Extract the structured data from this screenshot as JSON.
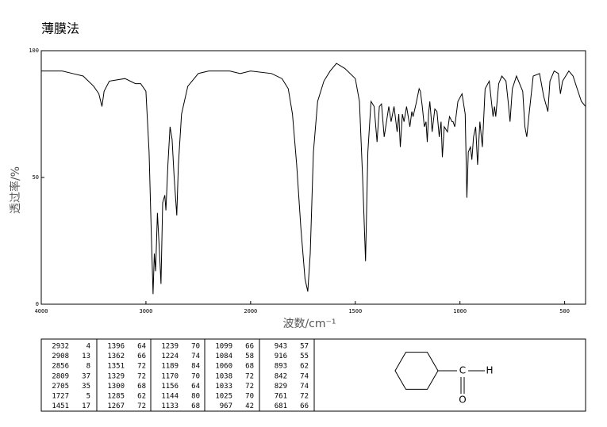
{
  "chart_data": {
    "type": "line",
    "title": "薄膜法",
    "x_label": "波数/cm⁻¹",
    "y_label": "透过率/%",
    "xlim": [
      4000,
      400
    ],
    "ylim": [
      0,
      100
    ],
    "x_scale_break": {
      "at": 2000,
      "factor_below": 2
    },
    "xticks": [
      4000,
      3000,
      2000,
      1500,
      1000,
      500
    ],
    "yticks": [
      0,
      50,
      100
    ],
    "series": [
      {
        "color": "#000000",
        "x": [
          4000,
          3900,
          3800,
          3700,
          3600,
          3500,
          3450,
          3420,
          3400,
          3350,
          3200,
          3100,
          3050,
          3000,
          2970,
          2950,
          2932,
          2920,
          2908,
          2890,
          2870,
          2856,
          2840,
          2820,
          2809,
          2790,
          2770,
          2750,
          2730,
          2705,
          2690,
          2660,
          2600,
          2500,
          2400,
          2300,
          2200,
          2100,
          2000,
          1900,
          1850,
          1820,
          1800,
          1780,
          1760,
          1740,
          1727,
          1715,
          1700,
          1680,
          1650,
          1620,
          1590,
          1550,
          1500,
          1480,
          1465,
          1451,
          1440,
          1425,
          1410,
          1396,
          1385,
          1375,
          1362,
          1351,
          1340,
          1329,
          1315,
          1300,
          1292,
          1285,
          1275,
          1267,
          1255,
          1239,
          1230,
          1224,
          1210,
          1195,
          1189,
          1180,
          1170,
          1162,
          1156,
          1150,
          1144,
          1138,
          1133,
          1120,
          1110,
          1099,
          1090,
          1084,
          1075,
          1060,
          1050,
          1038,
          1033,
          1025,
          1010,
          990,
          975,
          967,
          960,
          950,
          943,
          935,
          925,
          916,
          905,
          893,
          880,
          860,
          850,
          842,
          835,
          829,
          815,
          800,
          780,
          770,
          761,
          750,
          730,
          700,
          690,
          681,
          670,
          650,
          620,
          600,
          580,
          570,
          550,
          530,
          520,
          510,
          480,
          460,
          440,
          420,
          400
        ],
        "values": [
          92,
          92,
          92,
          91,
          90,
          86,
          83,
          78,
          84,
          88,
          89,
          87,
          87,
          84,
          60,
          30,
          4,
          20,
          13,
          36,
          20,
          8,
          40,
          43,
          37,
          55,
          70,
          65,
          50,
          35,
          55,
          75,
          86,
          91,
          92,
          92,
          92,
          91,
          92,
          91,
          89,
          85,
          75,
          55,
          30,
          10,
          5,
          20,
          60,
          80,
          88,
          92,
          95,
          93,
          89,
          80,
          50,
          17,
          60,
          80,
          78,
          64,
          78,
          79,
          66,
          72,
          78,
          72,
          78,
          68,
          75,
          62,
          75,
          72,
          78,
          70,
          76,
          74,
          79,
          85,
          84,
          78,
          70,
          72,
          64,
          75,
          80,
          74,
          68,
          77,
          76,
          66,
          72,
          58,
          70,
          68,
          74,
          72,
          72,
          70,
          80,
          83,
          75,
          42,
          60,
          62,
          57,
          66,
          70,
          55,
          72,
          62,
          85,
          88,
          80,
          74,
          78,
          74,
          87,
          90,
          88,
          80,
          72,
          85,
          90,
          84,
          70,
          66,
          75,
          90,
          91,
          82,
          76,
          88,
          92,
          91,
          83,
          88,
          92,
          90,
          85,
          80,
          78
        ]
      }
    ]
  },
  "peak_table": {
    "groups": [
      [
        [
          2932,
          4
        ],
        [
          2908,
          13
        ],
        [
          2856,
          8
        ],
        [
          2809,
          37
        ],
        [
          2705,
          35
        ],
        [
          1727,
          5
        ],
        [
          1451,
          17
        ]
      ],
      [
        [
          1396,
          64
        ],
        [
          1362,
          66
        ],
        [
          1351,
          72
        ],
        [
          1329,
          72
        ],
        [
          1300,
          68
        ],
        [
          1285,
          62
        ],
        [
          1267,
          72
        ]
      ],
      [
        [
          1239,
          70
        ],
        [
          1224,
          74
        ],
        [
          1189,
          84
        ],
        [
          1170,
          70
        ],
        [
          1156,
          64
        ],
        [
          1144,
          80
        ],
        [
          1133,
          68
        ]
      ],
      [
        [
          1099,
          66
        ],
        [
          1084,
          58
        ],
        [
          1060,
          68
        ],
        [
          1038,
          72
        ],
        [
          1033,
          72
        ],
        [
          1025,
          70
        ],
        [
          967,
          42
        ]
      ],
      [
        [
          943,
          57
        ],
        [
          916,
          55
        ],
        [
          893,
          62
        ],
        [
          842,
          74
        ],
        [
          829,
          74
        ],
        [
          761,
          72
        ],
        [
          681,
          66
        ]
      ]
    ]
  },
  "structure": {
    "atoms": [
      "C",
      "H",
      "O"
    ]
  }
}
